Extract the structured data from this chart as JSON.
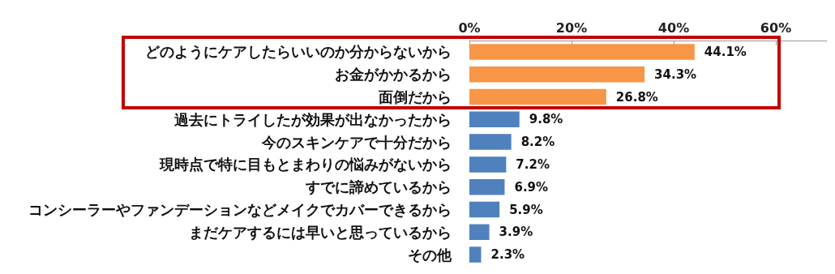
{
  "chart_data": {
    "type": "bar",
    "orientation": "horizontal",
    "categories": [
      "どのようにケアしたらいいのか分からないから",
      "お金がかかるから",
      "面倒だから",
      "過去にトライしたが効果が出なかったから",
      "今のスキンケアで十分だから",
      "現時点で特に目もとまわりの悩みがないから",
      "すでに諦めているから",
      "コンシーラーやファンデーションなどメイクでカバーできるから",
      "まだケアするには早いと思っているから",
      "その他"
    ],
    "values": [
      44.1,
      34.3,
      26.8,
      9.8,
      8.2,
      7.2,
      6.9,
      5.9,
      3.9,
      2.3
    ],
    "colors": [
      "#f79646",
      "#f79646",
      "#f79646",
      "#4f81bd",
      "#4f81bd",
      "#4f81bd",
      "#4f81bd",
      "#4f81bd",
      "#4f81bd",
      "#4f81bd"
    ],
    "value_labels": [
      "44.1%",
      "34.3%",
      "26.8%",
      "9.8%",
      "8.2%",
      "7.2%",
      "6.9%",
      "5.9%",
      "3.9%",
      "2.3%"
    ],
    "xlim": [
      0,
      70
    ],
    "xticks": [
      {
        "value": 0,
        "label": "0%"
      },
      {
        "value": 20,
        "label": "20%"
      },
      {
        "value": 40,
        "label": "40%"
      },
      {
        "value": 60,
        "label": "60%"
      }
    ]
  }
}
